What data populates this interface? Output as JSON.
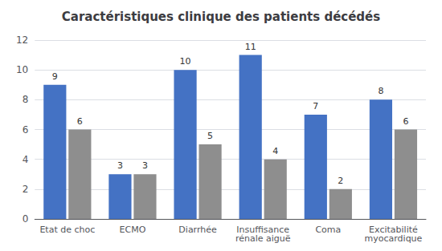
{
  "chart_data": {
    "type": "bar",
    "title": "Caractéristiques clinique des patients décédés",
    "categories": [
      "Etat de choc",
      "ECMO",
      "Diarrhée",
      "Insuffisance\nrénale aiguë",
      "Coma",
      "Excitabilité\nmyocardique"
    ],
    "series": [
      {
        "color": "#4472C4",
        "values": [
          9,
          3,
          10,
          11,
          7,
          8
        ]
      },
      {
        "color": "#8E8E8E",
        "values": [
          6,
          3,
          5,
          4,
          2,
          6
        ]
      }
    ],
    "ylim": [
      0,
      12
    ],
    "yticks": [
      0,
      2,
      4,
      6,
      8,
      10,
      12
    ],
    "grid": true,
    "data_labels": true
  }
}
